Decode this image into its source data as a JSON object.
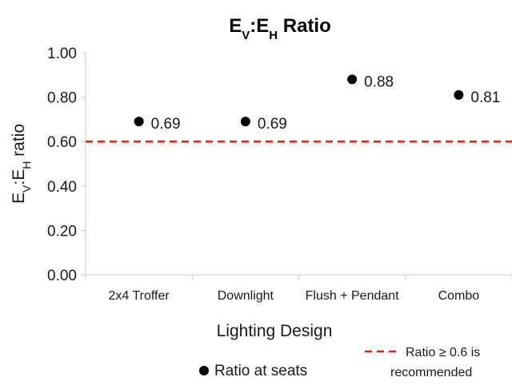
{
  "chart_data": {
    "type": "scatter",
    "title": {
      "parts": [
        {
          "text": "E",
          "sub": false
        },
        {
          "text": "V",
          "sub": true
        },
        {
          "text": ":E",
          "sub": false
        },
        {
          "text": "H",
          "sub": true
        },
        {
          "text": " Ratio",
          "sub": false
        }
      ]
    },
    "ylabel": {
      "parts": [
        {
          "text": "E",
          "sub": false
        },
        {
          "text": "V",
          "sub": true
        },
        {
          "text": ":E",
          "sub": false
        },
        {
          "text": "H",
          "sub": true
        },
        {
          "text": " ratio",
          "sub": false
        }
      ]
    },
    "xlabel": "Lighting Design",
    "categories": [
      "2x4 Troffer",
      "Downlight",
      "Flush + Pendant",
      "Combo"
    ],
    "ylim": [
      0,
      1
    ],
    "yticks": [
      "0.00",
      "0.20",
      "0.40",
      "0.60",
      "0.80",
      "1.00"
    ],
    "series": [
      {
        "name": "Ratio at seats",
        "values": [
          0.69,
          0.69,
          0.88,
          0.81
        ],
        "labels": [
          "0.69",
          "0.69",
          "0.88",
          "0.81"
        ]
      }
    ],
    "reference_line": {
      "value": 0.6,
      "label_lines": [
        "Ratio ≥ 0.6 is",
        "recommended"
      ],
      "style": "dashed"
    },
    "grid": {
      "horizontal": false,
      "vertical": false
    },
    "legend_position": "bottom",
    "colors": {
      "series": "#000000",
      "reference": "#e0201b",
      "axis": "#c8c8c8"
    }
  }
}
